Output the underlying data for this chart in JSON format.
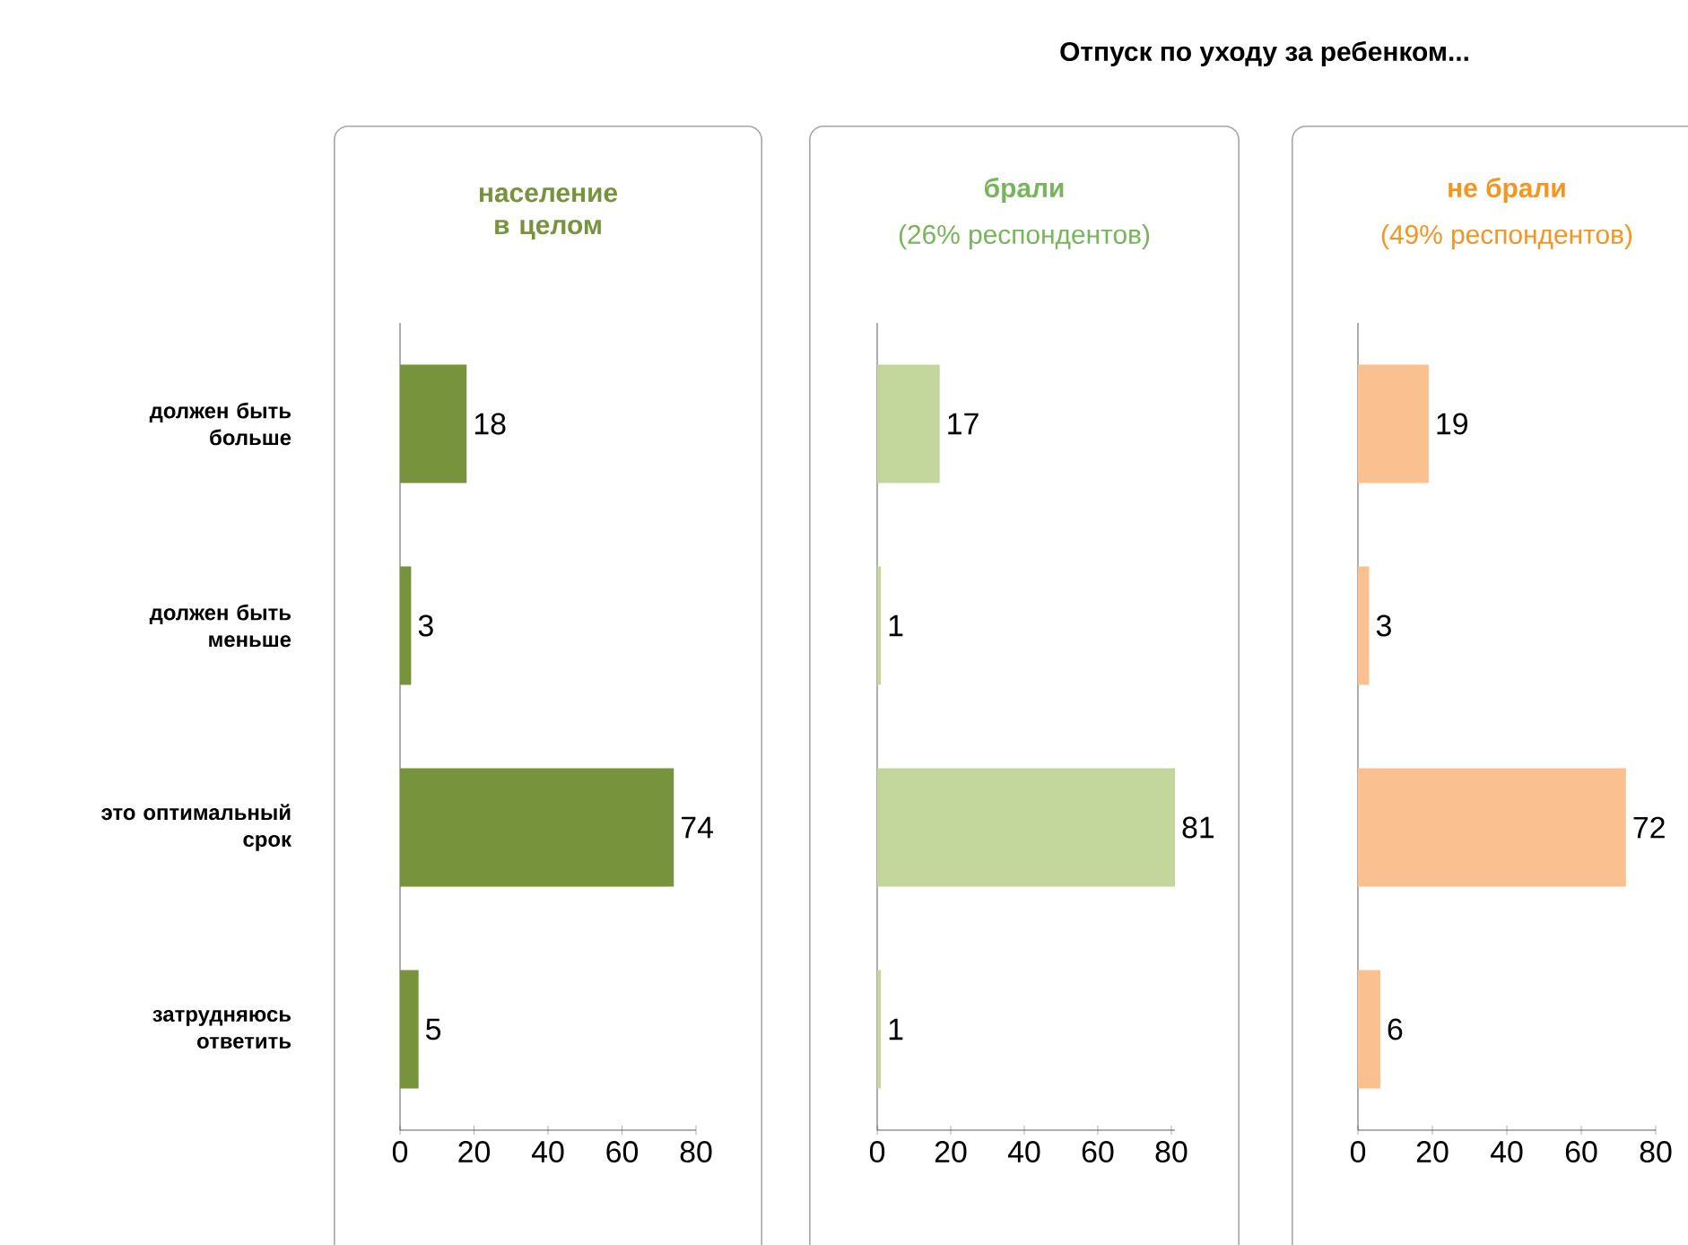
{
  "chart_data": [
    {
      "type": "bar",
      "orientation": "horizontal",
      "title": "население в целом",
      "annotations": [
        "Отпуск по уходу за ребенком..."
      ],
      "categories": [
        "должен быть больше",
        "должен быть меньше",
        "это оптимальный срок",
        "затрудняюсь ответить"
      ],
      "values": [
        18,
        3,
        74,
        5
      ],
      "color": "#77933c",
      "xlim": [
        0,
        80
      ],
      "xticks": [
        0,
        20,
        40,
        60,
        80
      ],
      "data_labels": true
    },
    {
      "type": "bar",
      "orientation": "horizontal",
      "title": "брали",
      "subtitle": "(26% респондентов)",
      "values": [
        17,
        1,
        81,
        1
      ],
      "color": "#c3d69b",
      "xlim": [
        0,
        81
      ],
      "xticks": [
        0,
        20,
        40,
        60,
        80
      ],
      "data_labels": true,
      "tick_labels": "x"
    },
    {
      "type": "bar",
      "orientation": "horizontal",
      "title": "не брали",
      "subtitle": "(49% респондентов)",
      "values": [
        19,
        3,
        72,
        6
      ],
      "color": "#fac090",
      "xlim": [
        0,
        80
      ],
      "xticks": [
        0,
        20,
        40,
        60,
        80
      ],
      "data_labels": true,
      "tick_labels": "x"
    }
  ]
}
